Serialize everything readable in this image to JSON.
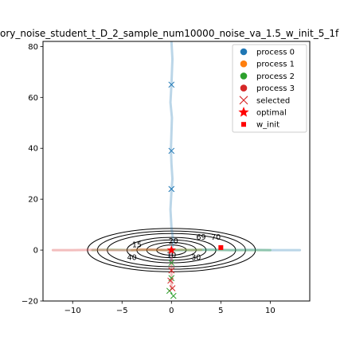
{
  "chart_data": {
    "type": "line",
    "title": "ory_noise_student_t_D_2_sample_num10000_noise_va_1.5_w_init_5_1f",
    "xlabel": "",
    "ylabel": "",
    "xlim": [
      -13,
      14
    ],
    "ylim": [
      -20,
      82
    ],
    "xticks": [
      -10,
      -5,
      0,
      5,
      10
    ],
    "yticks": [
      -20,
      0,
      20,
      40,
      60,
      80
    ],
    "xtick_labels": [
      "−10",
      "−5",
      "0",
      "5",
      "10"
    ],
    "ytick_labels": [
      "−20",
      "0",
      "20",
      "40",
      "60",
      "80"
    ],
    "grid": false,
    "legend_position": "top-right",
    "series": [
      {
        "name": "process 0",
        "color": "#1f77b4",
        "x": [
          0,
          0.1,
          0.05,
          0,
          -0.1,
          0.05,
          0,
          -0.05,
          0,
          0.1,
          0,
          -0.1,
          0,
          0.2,
          0,
          -0.2,
          0,
          0,
          2,
          4,
          6,
          8,
          10,
          13
        ],
        "y": [
          82,
          75,
          70,
          65,
          58,
          52,
          46,
          40,
          34,
          28,
          23,
          16,
          9,
          3,
          0,
          -2,
          -5,
          0,
          0,
          0.2,
          0,
          0.1,
          0,
          0
        ],
        "selected_x": [
          0,
          0,
          0
        ],
        "selected_y": [
          65,
          39,
          24
        ]
      },
      {
        "name": "process 1",
        "color": "#ff7f0e",
        "x": [
          -4,
          -3,
          -2,
          -1,
          0,
          1,
          2,
          3
        ],
        "y": [
          0,
          0.3,
          0.1,
          0,
          0,
          0.2,
          0,
          0.1
        ],
        "selected_x": [],
        "selected_y": []
      },
      {
        "name": "process 2",
        "color": "#2ca02c",
        "x": [
          -8,
          -6,
          -4,
          -2,
          0,
          3,
          6,
          9,
          10
        ],
        "y": [
          0,
          0.2,
          0,
          0.1,
          0,
          0.1,
          0,
          0,
          0
        ],
        "selected_x": [
          0,
          0,
          -0.2,
          0.2
        ],
        "selected_y": [
          -5,
          -11,
          -16,
          -18
        ]
      },
      {
        "name": "process 3",
        "color": "#d62728",
        "x": [
          -12,
          -10,
          -8,
          -6,
          -4,
          -2,
          0,
          0,
          0,
          0
        ],
        "y": [
          0,
          0,
          0.1,
          0,
          0,
          0.2,
          0,
          -5,
          -10,
          -15
        ],
        "selected_x": [
          0,
          -0.1,
          0.1
        ],
        "selected_y": [
          -8,
          -12,
          -15
        ]
      }
    ],
    "selected": {
      "name": "selected",
      "marker": "x"
    },
    "optimal": {
      "name": "optimal",
      "x": 0,
      "y": 0,
      "color": "#ff0000",
      "marker": "star"
    },
    "w_init": {
      "name": "w_init",
      "x": 5,
      "y": 1,
      "color": "#ff0000",
      "marker": "square"
    },
    "contours": {
      "center": [
        0,
        0
      ],
      "rx": [
        1.5,
        2.5,
        3.5,
        4.5,
        6.5,
        7.5,
        8.5
      ],
      "ry": [
        2,
        3,
        4,
        5,
        6.5,
        7.5,
        8.5
      ],
      "levels": [
        "10",
        "20",
        "30",
        "40",
        "50",
        "60",
        "70"
      ],
      "labels": [
        {
          "text": "10",
          "x": 0,
          "y": -2
        },
        {
          "text": "20",
          "x": 0.2,
          "y": 3.5
        },
        {
          "text": "30",
          "x": 2.5,
          "y": -3
        },
        {
          "text": "40",
          "x": -4,
          "y": -3
        },
        {
          "text": "15",
          "x": -3.5,
          "y": 2
        },
        {
          "text": "69",
          "x": 3,
          "y": 5
        },
        {
          "text": "70",
          "x": 4.5,
          "y": 5
        }
      ]
    }
  }
}
